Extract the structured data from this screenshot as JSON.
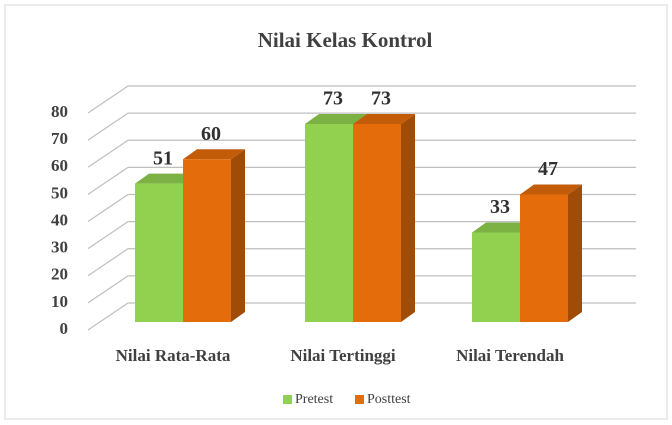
{
  "chart_data": {
    "type": "bar3d",
    "title": "Nilai Kelas Kontrol",
    "categories": [
      "Nilai Rata-Rata",
      "Nilai Tertinggi",
      "Nilai Terendah"
    ],
    "series": [
      {
        "name": "Pretest",
        "color": "#92d050",
        "values": [
          51,
          73,
          33
        ]
      },
      {
        "name": "Posttest",
        "color": "#e46c0a",
        "values": [
          60,
          73,
          47
        ]
      }
    ],
    "ylim": [
      0,
      80
    ],
    "yticks": [
      0,
      10,
      20,
      30,
      40,
      50,
      60,
      70,
      80
    ],
    "grid": true,
    "legend": "bottom"
  }
}
